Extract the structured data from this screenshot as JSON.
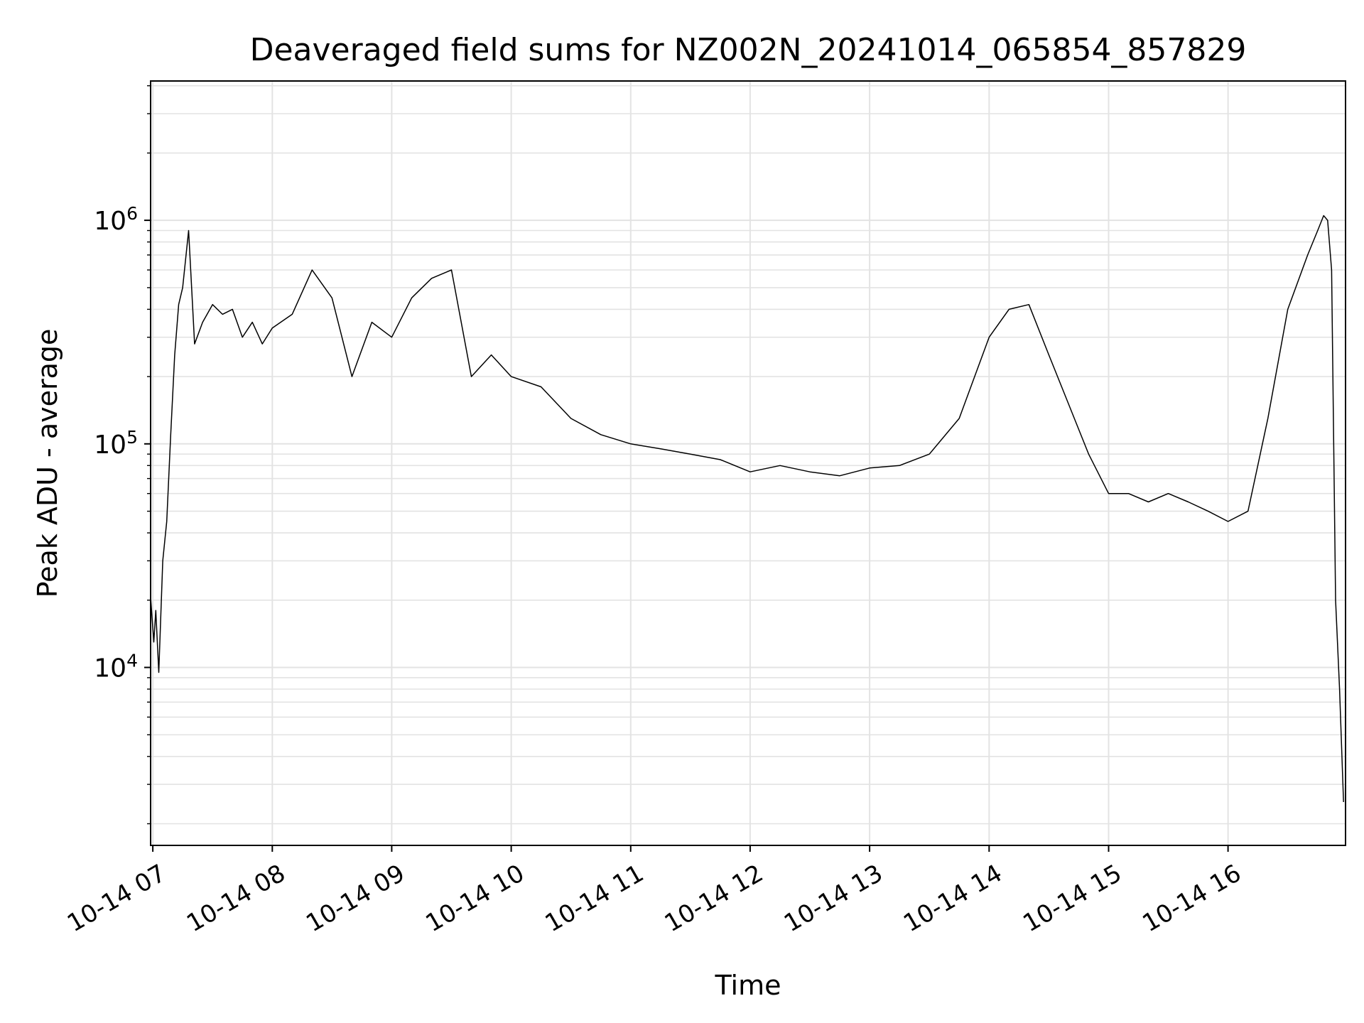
{
  "chart_data": {
    "type": "line",
    "title": "Deaveraged field sums for NZ002N_20241014_065854_857829",
    "xlabel": "Time",
    "ylabel": "Peak ADU - average",
    "xscale": "time",
    "yscale": "log",
    "grid": true,
    "legend": "none",
    "xlim": [
      "2024-10-14 06:58:54",
      "2024-10-14 16:59:00"
    ],
    "ylim": [
      1600,
      4200000
    ],
    "x_ticks": [
      {
        "time": "2024-10-14 07:00",
        "label": "10-14 07"
      },
      {
        "time": "2024-10-14 08:00",
        "label": "10-14 08"
      },
      {
        "time": "2024-10-14 09:00",
        "label": "10-14 09"
      },
      {
        "time": "2024-10-14 10:00",
        "label": "10-14 10"
      },
      {
        "time": "2024-10-14 11:00",
        "label": "10-14 11"
      },
      {
        "time": "2024-10-14 12:00",
        "label": "10-14 12"
      },
      {
        "time": "2024-10-14 13:00",
        "label": "10-14 13"
      },
      {
        "time": "2024-10-14 14:00",
        "label": "10-14 14"
      },
      {
        "time": "2024-10-14 15:00",
        "label": "10-14 15"
      },
      {
        "time": "2024-10-14 16:00",
        "label": "10-14 16"
      }
    ],
    "y_ticks": [
      {
        "value": 10000,
        "base": "10",
        "exp": "4"
      },
      {
        "value": 100000,
        "base": "10",
        "exp": "5"
      },
      {
        "value": 1000000,
        "base": "10",
        "exp": "6"
      }
    ],
    "series": [
      {
        "color": "#000000",
        "x": [
          "2024-10-14 06:59:00",
          "2024-10-14 07:00:30",
          "2024-10-14 07:01:30",
          "2024-10-14 07:03:00",
          "2024-10-14 07:05:00",
          "2024-10-14 07:07:00",
          "2024-10-14 07:09:00",
          "2024-10-14 07:11:00",
          "2024-10-14 07:13:00",
          "2024-10-14 07:15:00",
          "2024-10-14 07:18:00",
          "2024-10-14 07:21:00",
          "2024-10-14 07:25:00",
          "2024-10-14 07:30:00",
          "2024-10-14 07:35:00",
          "2024-10-14 07:40:00",
          "2024-10-14 07:45:00",
          "2024-10-14 07:50:00",
          "2024-10-14 07:55:00",
          "2024-10-14 08:00:00",
          "2024-10-14 08:10:00",
          "2024-10-14 08:20:00",
          "2024-10-14 08:30:00",
          "2024-10-14 08:40:00",
          "2024-10-14 08:50:00",
          "2024-10-14 09:00:00",
          "2024-10-14 09:10:00",
          "2024-10-14 09:20:00",
          "2024-10-14 09:30:00",
          "2024-10-14 09:40:00",
          "2024-10-14 09:50:00",
          "2024-10-14 10:00:00",
          "2024-10-14 10:15:00",
          "2024-10-14 10:30:00",
          "2024-10-14 10:45:00",
          "2024-10-14 11:00:00",
          "2024-10-14 11:15:00",
          "2024-10-14 11:30:00",
          "2024-10-14 11:45:00",
          "2024-10-14 12:00:00",
          "2024-10-14 12:15:00",
          "2024-10-14 12:30:00",
          "2024-10-14 12:45:00",
          "2024-10-14 13:00:00",
          "2024-10-14 13:15:00",
          "2024-10-14 13:30:00",
          "2024-10-14 13:45:00",
          "2024-10-14 14:00:00",
          "2024-10-14 14:10:00",
          "2024-10-14 14:20:00",
          "2024-10-14 14:30:00",
          "2024-10-14 14:40:00",
          "2024-10-14 14:50:00",
          "2024-10-14 15:00:00",
          "2024-10-14 15:10:00",
          "2024-10-14 15:20:00",
          "2024-10-14 15:30:00",
          "2024-10-14 15:40:00",
          "2024-10-14 15:50:00",
          "2024-10-14 16:00:00",
          "2024-10-14 16:10:00",
          "2024-10-14 16:20:00",
          "2024-10-14 16:30:00",
          "2024-10-14 16:40:00",
          "2024-10-14 16:45:00",
          "2024-10-14 16:48:00",
          "2024-10-14 16:50:00",
          "2024-10-14 16:52:00",
          "2024-10-14 16:54:00",
          "2024-10-14 16:56:00",
          "2024-10-14 16:58:00"
        ],
        "y": [
          20000,
          13000,
          18000,
          9500,
          30000,
          45000,
          110000,
          250000,
          420000,
          500000,
          900000,
          280000,
          350000,
          420000,
          380000,
          400000,
          300000,
          350000,
          280000,
          330000,
          380000,
          600000,
          450000,
          200000,
          350000,
          300000,
          450000,
          550000,
          600000,
          200000,
          250000,
          200000,
          180000,
          130000,
          110000,
          100000,
          95000,
          90000,
          85000,
          75000,
          80000,
          75000,
          72000,
          78000,
          80000,
          90000,
          130000,
          300000,
          400000,
          420000,
          250000,
          150000,
          90000,
          60000,
          60000,
          55000,
          60000,
          55000,
          50000,
          45000,
          50000,
          130000,
          400000,
          700000,
          900000,
          1050000,
          1000000,
          600000,
          20000,
          8000,
          2500
        ]
      }
    ]
  }
}
